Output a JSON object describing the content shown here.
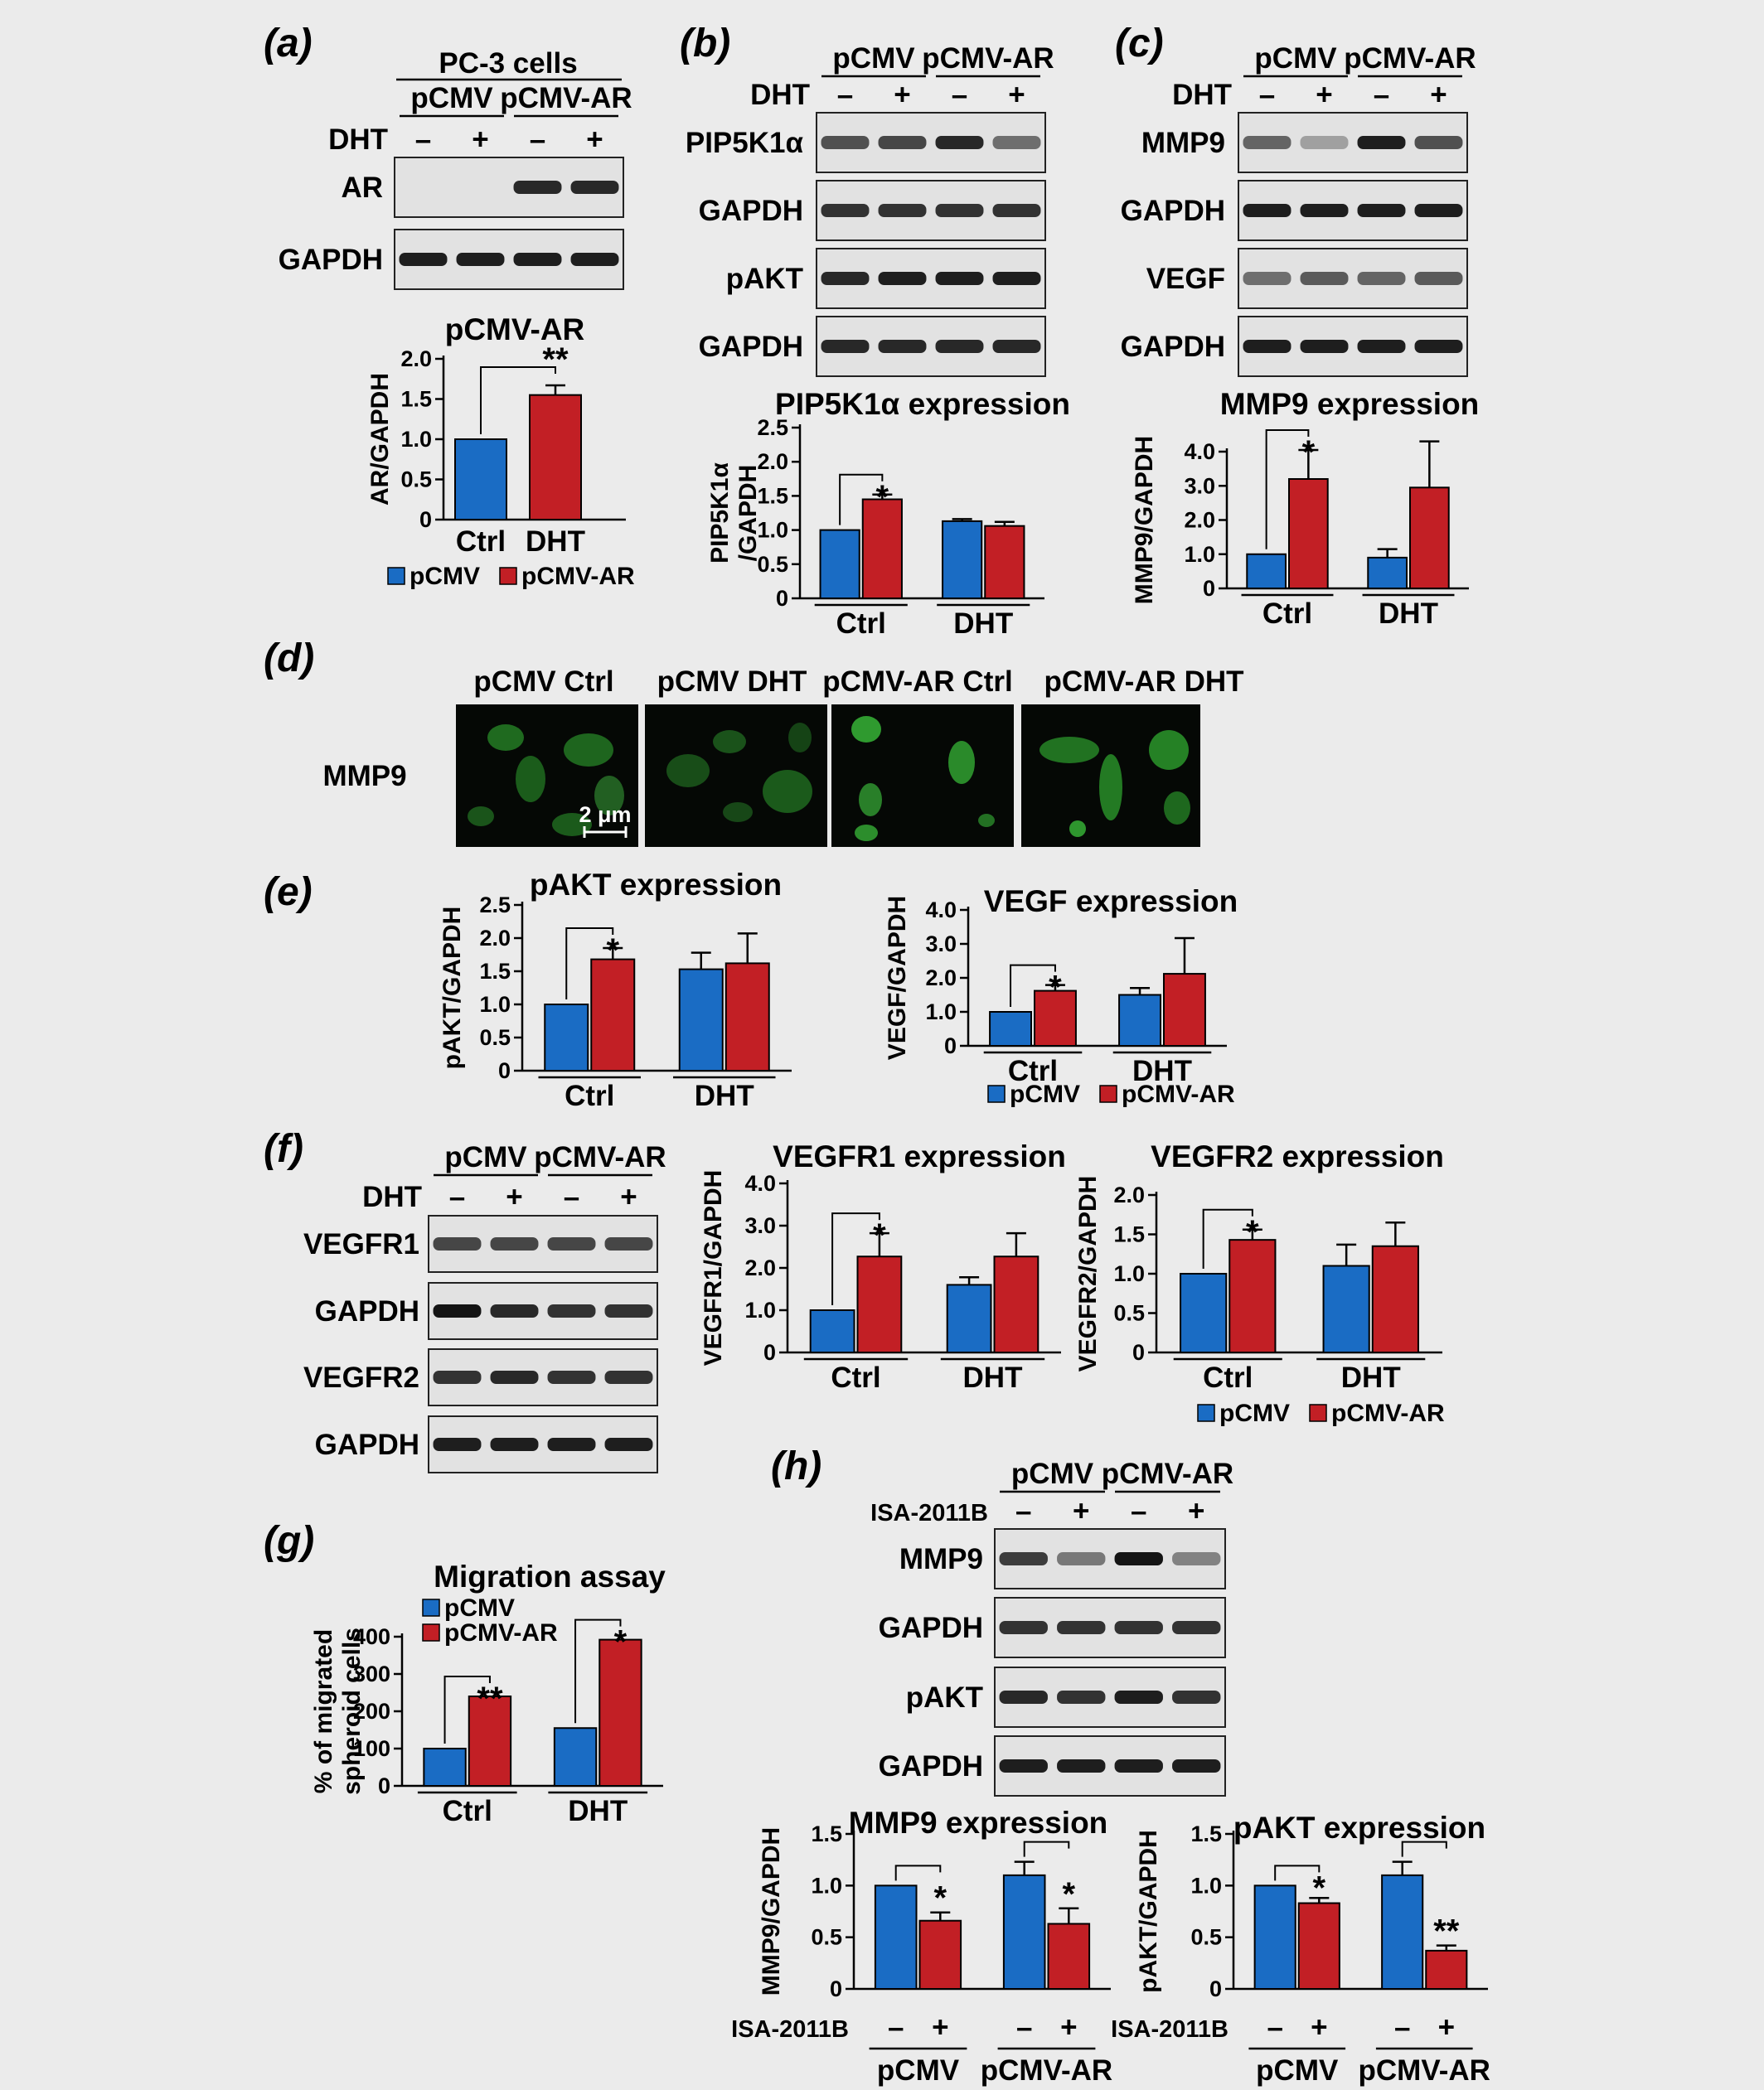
{
  "colors": {
    "pCMV": "#1a6cc4",
    "pCMV-AR": "#c21f25",
    "background": "#ebebeb",
    "blot": "#e2e2e2"
  },
  "panels": {
    "a": {
      "label": "(a)",
      "cell_line": "PC-3 cells",
      "groups": [
        "pCMV",
        "pCMV-AR"
      ],
      "treatment": "DHT",
      "lanes": [
        "–",
        "+",
        "–",
        "+"
      ],
      "rows": [
        "AR",
        "GAPDH"
      ]
    },
    "b": {
      "label": "(b)",
      "groups": [
        "pCMV",
        "pCMV-AR"
      ],
      "treatment": "DHT",
      "lanes": [
        "–",
        "+",
        "–",
        "+"
      ],
      "rows": [
        "PIP5K1α",
        "GAPDH",
        "pAKT",
        "GAPDH"
      ]
    },
    "c": {
      "label": "(c)",
      "groups": [
        "pCMV",
        "pCMV-AR"
      ],
      "treatment": "DHT",
      "lanes": [
        "–",
        "+",
        "–",
        "+"
      ],
      "rows": [
        "MMP9",
        "GAPDH",
        "VEGF",
        "GAPDH"
      ]
    },
    "d": {
      "label": "(d)",
      "row_label": "MMP9",
      "images": [
        "pCMV Ctrl",
        "pCMV DHT",
        "pCMV-AR Ctrl",
        "pCMV-AR DHT"
      ],
      "scale_bar": "2 μm"
    },
    "e": {
      "label": "(e)"
    },
    "f": {
      "label": "(f)",
      "groups": [
        "pCMV",
        "pCMV-AR"
      ],
      "treatment": "DHT",
      "lanes": [
        "–",
        "+",
        "–",
        "+"
      ],
      "rows": [
        "VEGFR1",
        "GAPDH",
        "VEGFR2",
        "GAPDH"
      ]
    },
    "g": {
      "label": "(g)"
    },
    "h": {
      "label": "(h)",
      "groups": [
        "pCMV",
        "pCMV-AR"
      ],
      "treatment": "ISA-2011B",
      "lanes": [
        "–",
        "+",
        "–",
        "+"
      ],
      "rows": [
        "MMP9",
        "GAPDH",
        "pAKT",
        "GAPDH"
      ]
    }
  },
  "legend": {
    "pCMV": "pCMV",
    "pCMV-AR": "pCMV-AR"
  },
  "chart_data": [
    {
      "id": "a",
      "type": "bar",
      "title": "pCMV-AR",
      "ylabel": "AR/GAPDH",
      "ylim": [
        0,
        2.0
      ],
      "yticks": [
        "0",
        "0.5",
        "1.0",
        "1.5",
        "2.0"
      ],
      "categories": [
        "Ctrl",
        "DHT"
      ],
      "series": [
        {
          "name": "pCMV-AR",
          "values": [
            1.0,
            1.55
          ],
          "errors": [
            0,
            0.12
          ]
        }
      ],
      "significance": [
        {
          "text": "**",
          "between": [
            "Ctrl",
            "DHT"
          ]
        }
      ],
      "legend": [
        "pCMV",
        "pCMV-AR"
      ]
    },
    {
      "id": "b",
      "type": "bar",
      "title": "PIP5K1α expression",
      "ylabel": "PIP5K1α /GAPDH",
      "ylim": [
        0,
        2.5
      ],
      "yticks": [
        "0",
        "0.5",
        "1.0",
        "1.5",
        "2.0",
        "2.5"
      ],
      "categories": [
        "Ctrl",
        "DHT"
      ],
      "series": [
        {
          "name": "pCMV",
          "values": [
            1.0,
            1.13
          ],
          "errors": [
            0,
            0.03
          ]
        },
        {
          "name": "pCMV-AR",
          "values": [
            1.45,
            1.06
          ],
          "errors": [
            0.07,
            0.06
          ]
        }
      ],
      "significance": [
        {
          "text": "*",
          "category": "Ctrl"
        }
      ]
    },
    {
      "id": "c",
      "type": "bar",
      "title": "MMP9 expression",
      "ylabel": "MMP9/GAPDH",
      "ylim": [
        0,
        4.0
      ],
      "yticks": [
        "0",
        "1.0",
        "2.0",
        "3.0",
        "4.0"
      ],
      "categories": [
        "Ctrl",
        "DHT"
      ],
      "series": [
        {
          "name": "pCMV",
          "values": [
            1.0,
            0.9
          ],
          "errors": [
            0,
            0.25
          ]
        },
        {
          "name": "pCMV-AR",
          "values": [
            3.2,
            2.95
          ],
          "errors": [
            0.85,
            1.35
          ]
        }
      ],
      "significance": [
        {
          "text": "*",
          "category": "Ctrl"
        }
      ]
    },
    {
      "id": "e1",
      "type": "bar",
      "title": "pAKT expression",
      "ylabel": "pAKT/GAPDH",
      "ylim": [
        0,
        2.5
      ],
      "yticks": [
        "0",
        "0.5",
        "1.0",
        "1.5",
        "2.0",
        "2.5"
      ],
      "categories": [
        "Ctrl",
        "DHT"
      ],
      "series": [
        {
          "name": "pCMV",
          "values": [
            1.0,
            1.53
          ],
          "errors": [
            0,
            0.25
          ]
        },
        {
          "name": "pCMV-AR",
          "values": [
            1.68,
            1.62
          ],
          "errors": [
            0.17,
            0.45
          ]
        }
      ],
      "significance": [
        {
          "text": "*",
          "category": "Ctrl"
        }
      ]
    },
    {
      "id": "e2",
      "type": "bar",
      "title": "VEGF expression",
      "ylabel": "VEGF/GAPDH",
      "ylim": [
        0,
        4.0
      ],
      "yticks": [
        "0",
        "1.0",
        "2.0",
        "3.0",
        "4.0"
      ],
      "categories": [
        "Ctrl",
        "DHT"
      ],
      "series": [
        {
          "name": "pCMV",
          "values": [
            1.0,
            1.5
          ],
          "errors": [
            0,
            0.2
          ]
        },
        {
          "name": "pCMV-AR",
          "values": [
            1.62,
            2.12
          ],
          "errors": [
            0.17,
            1.05
          ]
        }
      ],
      "significance": [
        {
          "text": "*",
          "category": "Ctrl"
        }
      ],
      "legend": [
        "pCMV",
        "pCMV-AR"
      ]
    },
    {
      "id": "f1",
      "type": "bar",
      "title": "VEGFR1 expression",
      "ylabel": "VEGFR1/GAPDH",
      "ylim": [
        0,
        4.0
      ],
      "yticks": [
        "0",
        "1.0",
        "2.0",
        "3.0",
        "4.0"
      ],
      "categories": [
        "Ctrl",
        "DHT"
      ],
      "series": [
        {
          "name": "pCMV",
          "values": [
            1.0,
            1.6
          ],
          "errors": [
            0,
            0.18
          ]
        },
        {
          "name": "pCMV-AR",
          "values": [
            2.27,
            2.27
          ],
          "errors": [
            0.55,
            0.55
          ]
        }
      ],
      "significance": [
        {
          "text": "*",
          "category": "Ctrl"
        }
      ]
    },
    {
      "id": "f2",
      "type": "bar",
      "title": "VEGFR2 expression",
      "ylabel": "VEGFR2/GAPDH",
      "ylim": [
        0,
        2.0
      ],
      "yticks": [
        "0",
        "0.5",
        "1.0",
        "1.5",
        "2.0"
      ],
      "categories": [
        "Ctrl",
        "DHT"
      ],
      "series": [
        {
          "name": "pCMV",
          "values": [
            1.0,
            1.1
          ],
          "errors": [
            0,
            0.27
          ]
        },
        {
          "name": "pCMV-AR",
          "values": [
            1.43,
            1.35
          ],
          "errors": [
            0.13,
            0.3
          ]
        }
      ],
      "significance": [
        {
          "text": "*",
          "category": "Ctrl"
        }
      ],
      "legend": [
        "pCMV",
        "pCMV-AR"
      ]
    },
    {
      "id": "g",
      "type": "bar",
      "title": "Migration assay",
      "ylabel": "% of migrated spheroid cells",
      "ylim": [
        0,
        400
      ],
      "yticks": [
        "0",
        "100",
        "200",
        "300",
        "400"
      ],
      "categories": [
        "Ctrl",
        "DHT"
      ],
      "series": [
        {
          "name": "pCMV",
          "values": [
            100,
            155
          ],
          "errors": [
            0,
            0
          ]
        },
        {
          "name": "pCMV-AR",
          "values": [
            240,
            392
          ],
          "errors": [
            0,
            0
          ]
        }
      ],
      "significance": [
        {
          "text": "**",
          "category": "Ctrl"
        },
        {
          "text": "*",
          "category": "DHT"
        }
      ],
      "legend": [
        "pCMV",
        "pCMV-AR"
      ]
    },
    {
      "id": "h1",
      "type": "bar",
      "title": "MMP9 expression",
      "ylabel": "MMP9/GAPDH",
      "ylim": [
        0,
        1.5
      ],
      "yticks": [
        "0",
        "0.5",
        "1.0",
        "1.5"
      ],
      "categories": [
        "pCMV",
        "pCMV-AR"
      ],
      "xsub": [
        "–",
        "+"
      ],
      "xsub_label": "ISA-2011B",
      "series": [
        {
          "name": "pCMV",
          "values": [
            1.0,
            1.1
          ],
          "errors": [
            0,
            0.13
          ]
        },
        {
          "name": "pCMV-AR",
          "values": [
            0.66,
            0.63
          ],
          "errors": [
            0.08,
            0.15
          ]
        }
      ],
      "significance": [
        {
          "text": "*",
          "category": "pCMV"
        },
        {
          "text": "*",
          "category": "pCMV-AR"
        }
      ]
    },
    {
      "id": "h2",
      "type": "bar",
      "title": "pAKT expression",
      "ylabel": "pAKT/GAPDH",
      "ylim": [
        0,
        1.5
      ],
      "yticks": [
        "0",
        "0.5",
        "1.0",
        "1.5"
      ],
      "categories": [
        "pCMV",
        "pCMV-AR"
      ],
      "xsub": [
        "–",
        "+"
      ],
      "xsub_label": "ISA-2011B",
      "series": [
        {
          "name": "pCMV",
          "values": [
            1.0,
            1.1
          ],
          "errors": [
            0,
            0.13
          ]
        },
        {
          "name": "pCMV-AR",
          "values": [
            0.83,
            0.37
          ],
          "errors": [
            0.05,
            0.05
          ]
        }
      ],
      "significance": [
        {
          "text": "*",
          "category": "pCMV"
        },
        {
          "text": "**",
          "category": "pCMV-AR"
        }
      ]
    }
  ]
}
